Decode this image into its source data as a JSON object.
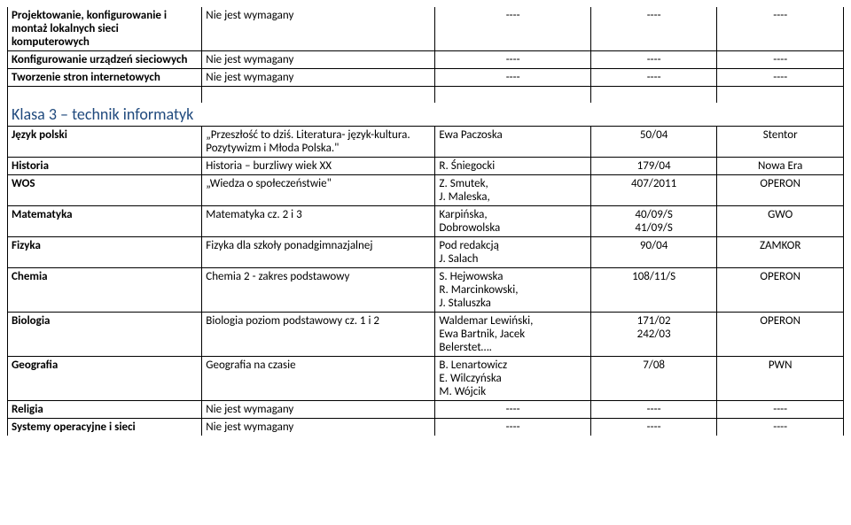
{
  "colors": {
    "border": "#000000",
    "text": "#000000",
    "heading": "#1f497d",
    "background": "#ffffff"
  },
  "fonts": {
    "body_family": "Calibri, Arial, sans-serif",
    "body_size_pt": 10,
    "heading_size_pt": 14
  },
  "dash": "----",
  "topTable": {
    "rows": [
      {
        "subject": "Projektowanie, konfigurowanie i montaż lokalnych sieci komputerowych",
        "title": "Nie jest wymagany",
        "author": "----",
        "num": "----",
        "pub": "----",
        "subject_bold": true
      },
      {
        "subject": "Konfigurowanie urządzeń sieciowych",
        "title": "Nie jest wymagany",
        "author": "----",
        "num": "----",
        "pub": "----",
        "subject_bold": true
      },
      {
        "subject": "Tworzenie stron internetowych",
        "title": "Nie jest wymagany",
        "author": "----",
        "num": "----",
        "pub": "----",
        "subject_bold": true
      }
    ]
  },
  "section_heading": "Klasa 3 – technik informatyk",
  "mainTable": {
    "rows": [
      {
        "subject": "Język polski",
        "title": "„Przeszłość to dziś. Literatura- język-kultura. Pozytywizm i Młoda Polska.\"",
        "author": "Ewa Paczoska",
        "num": "50/04",
        "pub": "Stentor",
        "subject_bold": true
      },
      {
        "subject": "Historia",
        "title": "Historia – burzliwy wiek XX",
        "author": "R. Śniegocki",
        "num": "179/04",
        "pub": "Nowa Era",
        "subject_bold": true
      },
      {
        "subject": "WOS",
        "title": "„Wiedza o społeczeństwie\"",
        "author": "Z. Smutek,\nJ. Maleska,",
        "num": "407/2011",
        "pub": "OPERON",
        "subject_bold": true
      },
      {
        "subject": "Matematyka",
        "title": "Matematyka cz. 2 i 3",
        "author": "Karpińska,\nDobrowolska",
        "num": "40/09/S\n41/09/S",
        "pub": "GWO",
        "subject_bold": true
      },
      {
        "subject": "Fizyka",
        "title": "Fizyka dla szkoły ponadgimnazjalnej",
        "author": "Pod redakcją\nJ. Salach",
        "num": "90/04",
        "pub": "ZAMKOR",
        "subject_bold": true
      },
      {
        "subject": "Chemia",
        "title": "Chemia 2 - zakres podstawowy",
        "author": "S. Hejwowska\nR. Marcinkowski,\nJ. Staluszka",
        "num": "108/11/S",
        "pub": "OPERON",
        "subject_bold": true
      },
      {
        "subject": "Biologia",
        "title": "Biologia poziom podstawowy cz. 1 i 2",
        "author": "Waldemar Lewiński,\nEwa Bartnik, Jacek\nBelerstet….",
        "num": "171/02\n242/03",
        "pub": "OPERON",
        "subject_bold": true
      },
      {
        "subject": "Geografia",
        "title": "Geografia na czasie",
        "author": "B. Lenartowicz\nE. Wilczyńska\nM. Wójcik",
        "num": "7/08",
        "pub": "PWN",
        "subject_bold": true
      },
      {
        "subject": "Religia",
        "title": "Nie jest wymagany",
        "author": "----",
        "num": "----",
        "pub": "----",
        "subject_bold": true
      },
      {
        "subject": "Systemy operacyjne i sieci",
        "title": "Nie jest wymagany",
        "author": "----",
        "num": "----",
        "pub": "----",
        "subject_bold": true
      }
    ]
  }
}
